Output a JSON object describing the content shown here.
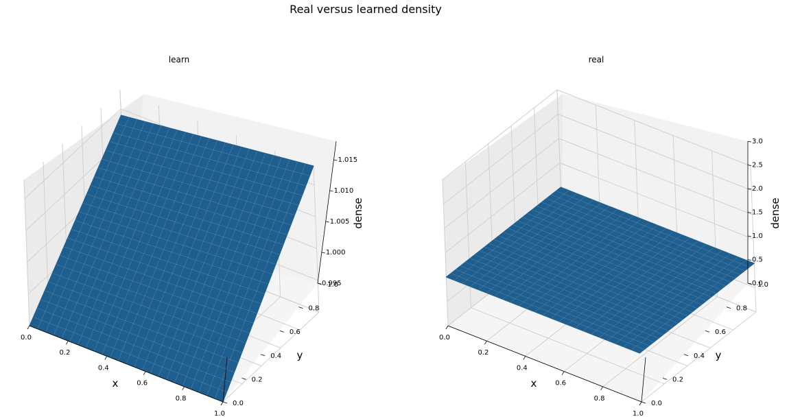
{
  "figure": {
    "title": "Real versus learned density"
  },
  "colors": {
    "surface": "#1f5f8f",
    "mesh": "#8fa7bc",
    "pane_back": "#f2f2f2",
    "pane_side": "#ebebeb",
    "pane_floor": "#f5f5f5",
    "grid": "#d0d0d0"
  },
  "chart_data": [
    {
      "type": "surface3d",
      "title": "learn",
      "xlabel": "x",
      "ylabel": "y",
      "zlabel": "dense",
      "xlim": [
        0,
        1
      ],
      "ylim": [
        0,
        1
      ],
      "zlim": [
        0.995,
        1.018
      ],
      "xticks": [
        "0.0",
        "0.2",
        "0.4",
        "0.6",
        "0.8",
        "1.0"
      ],
      "yticks": [
        "0.0",
        "0.2",
        "0.4",
        "0.6",
        "0.8",
        "1.0"
      ],
      "zticks": [
        "0.995",
        "1.000",
        "1.005",
        "1.010",
        "1.015"
      ],
      "surface_corners": [
        {
          "x": 0,
          "y": 0,
          "z": 0.995
        },
        {
          "x": 1,
          "y": 0,
          "z": 0.995
        },
        {
          "x": 1,
          "y": 1,
          "z": 1.018
        },
        {
          "x": 0,
          "y": 1,
          "z": 1.014
        }
      ]
    },
    {
      "type": "surface3d",
      "title": "real",
      "xlabel": "x",
      "ylabel": "y",
      "zlabel": "dense",
      "xlim": [
        0,
        1
      ],
      "ylim": [
        0,
        1
      ],
      "zlim": [
        0,
        3
      ],
      "xticks": [
        "0.0",
        "0.2",
        "0.4",
        "0.6",
        "0.8",
        "1.0"
      ],
      "yticks": [
        "0.0",
        "0.2",
        "0.4",
        "0.6",
        "0.8",
        "1.0"
      ],
      "zticks": [
        "0.0",
        "0.5",
        "1.0",
        "1.5",
        "2.0",
        "2.5",
        "3.0"
      ],
      "surface_corners": [
        {
          "x": 0,
          "y": 0,
          "z": 1.0
        },
        {
          "x": 1,
          "y": 0,
          "z": 1.0
        },
        {
          "x": 1,
          "y": 1,
          "z": 1.0
        },
        {
          "x": 0,
          "y": 1,
          "z": 1.0
        }
      ]
    }
  ]
}
